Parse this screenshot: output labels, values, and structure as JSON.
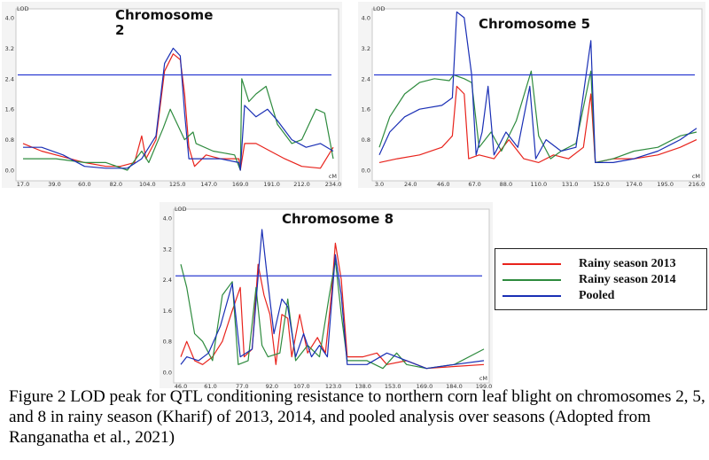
{
  "chart_data": [
    {
      "type": "line",
      "title": "Chromosome 2",
      "ylabel": "LOD",
      "xunit": "cM",
      "ylim": [
        0,
        4.0
      ],
      "xlim": [
        17,
        234
      ],
      "yticks": [
        "0.0",
        "0.8",
        "1.6",
        "2.4",
        "3.2",
        "4.0"
      ],
      "xticks": [
        "17.0",
        "39.0",
        "60.0",
        "82.0",
        "104.0",
        "125.0",
        "147.0",
        "169.0",
        "191.0",
        "212.0",
        "234.0"
      ],
      "threshold": 2.5,
      "series": [
        {
          "name": "Rainy season 2013",
          "color": "#e8231c",
          "points": [
            [
              17,
              0.7
            ],
            [
              30,
              0.5
            ],
            [
              45,
              0.35
            ],
            [
              60,
              0.2
            ],
            [
              75,
              0.1
            ],
            [
              85,
              0.1
            ],
            [
              95,
              0.2
            ],
            [
              100,
              0.9
            ],
            [
              103,
              0.3
            ],
            [
              110,
              0.8
            ],
            [
              116,
              2.6
            ],
            [
              122,
              3.05
            ],
            [
              127,
              2.9
            ],
            [
              130,
              2.0
            ],
            [
              133,
              0.6
            ],
            [
              137,
              0.1
            ],
            [
              145,
              0.4
            ],
            [
              155,
              0.3
            ],
            [
              168,
              0.3
            ],
            [
              169,
              0
            ],
            [
              172,
              0.7
            ],
            [
              180,
              0.7
            ],
            [
              190,
              0.5
            ],
            [
              200,
              0.3
            ],
            [
              212,
              0.1
            ],
            [
              225,
              0.05
            ],
            [
              234,
              0.6
            ]
          ]
        },
        {
          "name": "Rainy season 2014",
          "color": "#2e8b3e",
          "points": [
            [
              17,
              0.3
            ],
            [
              25,
              0.3
            ],
            [
              40,
              0.3
            ],
            [
              60,
              0.2
            ],
            [
              75,
              0.2
            ],
            [
              90,
              0.0
            ],
            [
              100,
              0.5
            ],
            [
              105,
              0.2
            ],
            [
              115,
              1.1
            ],
            [
              120,
              1.6
            ],
            [
              125,
              1.2
            ],
            [
              130,
              0.8
            ],
            [
              136,
              1.0
            ],
            [
              138,
              0.7
            ],
            [
              150,
              0.5
            ],
            [
              165,
              0.4
            ],
            [
              169,
              0
            ],
            [
              170,
              2.4
            ],
            [
              175,
              1.8
            ],
            [
              180,
              2.0
            ],
            [
              187,
              2.2
            ],
            [
              195,
              1.2
            ],
            [
              205,
              0.7
            ],
            [
              212,
              0.8
            ],
            [
              222,
              1.6
            ],
            [
              228,
              1.5
            ],
            [
              234,
              0.3
            ]
          ]
        },
        {
          "name": "Pooled",
          "color": "#1a2fb5",
          "points": [
            [
              17,
              0.6
            ],
            [
              30,
              0.6
            ],
            [
              45,
              0.4
            ],
            [
              60,
              0.1
            ],
            [
              75,
              0.05
            ],
            [
              90,
              0.05
            ],
            [
              100,
              0.3
            ],
            [
              110,
              0.9
            ],
            [
              116,
              2.8
            ],
            [
              122,
              3.2
            ],
            [
              127,
              3.0
            ],
            [
              130,
              1.5
            ],
            [
              133,
              0.3
            ],
            [
              140,
              0.3
            ],
            [
              155,
              0.3
            ],
            [
              168,
              0.2
            ],
            [
              169,
              0
            ],
            [
              172,
              1.7
            ],
            [
              180,
              1.4
            ],
            [
              188,
              1.6
            ],
            [
              195,
              1.3
            ],
            [
              205,
              0.8
            ],
            [
              215,
              0.6
            ],
            [
              225,
              0.7
            ],
            [
              234,
              0.5
            ]
          ]
        }
      ]
    },
    {
      "type": "line",
      "title": "Chromosome 5",
      "ylabel": "LOD",
      "xunit": "cM",
      "ylim": [
        0,
        4.0
      ],
      "xlim": [
        3,
        216
      ],
      "yticks": [
        "0.0",
        "0.8",
        "1.6",
        "2.4",
        "3.2",
        "4.0"
      ],
      "xticks": [
        "3.0",
        "24.0",
        "46.0",
        "67.0",
        "88.0",
        "110.0",
        "131.0",
        "152.0",
        "174.0",
        "195.0",
        "216.0"
      ],
      "threshold": 2.5,
      "series": [
        {
          "name": "Rainy season 2013",
          "color": "#e8231c",
          "points": [
            [
              3,
              0.2
            ],
            [
              15,
              0.3
            ],
            [
              30,
              0.4
            ],
            [
              45,
              0.6
            ],
            [
              52,
              0.9
            ],
            [
              55,
              2.2
            ],
            [
              60,
              2.0
            ],
            [
              63,
              0.3
            ],
            [
              70,
              0.4
            ],
            [
              80,
              0.3
            ],
            [
              90,
              0.8
            ],
            [
              100,
              0.3
            ],
            [
              110,
              0.2
            ],
            [
              120,
              0.4
            ],
            [
              130,
              0.3
            ],
            [
              140,
              0.6
            ],
            [
              145,
              2.0
            ],
            [
              148,
              0.2
            ],
            [
              160,
              0.3
            ],
            [
              174,
              0.3
            ],
            [
              190,
              0.4
            ],
            [
              205,
              0.6
            ],
            [
              216,
              0.8
            ]
          ]
        },
        {
          "name": "Rainy season 2014",
          "color": "#2e8b3e",
          "points": [
            [
              3,
              0.6
            ],
            [
              10,
              1.4
            ],
            [
              20,
              2.0
            ],
            [
              30,
              2.3
            ],
            [
              40,
              2.4
            ],
            [
              50,
              2.35
            ],
            [
              53,
              2.5
            ],
            [
              60,
              2.4
            ],
            [
              65,
              2.3
            ],
            [
              70,
              0.6
            ],
            [
              78,
              1.0
            ],
            [
              85,
              0.5
            ],
            [
              95,
              1.3
            ],
            [
              105,
              2.6
            ],
            [
              110,
              0.9
            ],
            [
              118,
              0.3
            ],
            [
              125,
              0.5
            ],
            [
              135,
              0.7
            ],
            [
              145,
              2.6
            ],
            [
              148,
              0.2
            ],
            [
              160,
              0.3
            ],
            [
              174,
              0.5
            ],
            [
              190,
              0.6
            ],
            [
              205,
              0.9
            ],
            [
              216,
              1.0
            ]
          ]
        },
        {
          "name": "Pooled",
          "color": "#1a2fb5",
          "points": [
            [
              3,
              0.4
            ],
            [
              10,
              1.0
            ],
            [
              20,
              1.4
            ],
            [
              30,
              1.6
            ],
            [
              45,
              1.7
            ],
            [
              52,
              1.9
            ],
            [
              55,
              4.15
            ],
            [
              60,
              4.0
            ],
            [
              65,
              2.5
            ],
            [
              68,
              0.4
            ],
            [
              72,
              1.0
            ],
            [
              76,
              2.2
            ],
            [
              80,
              0.4
            ],
            [
              88,
              1.0
            ],
            [
              96,
              0.6
            ],
            [
              104,
              2.2
            ],
            [
              108,
              0.3
            ],
            [
              115,
              0.8
            ],
            [
              125,
              0.5
            ],
            [
              135,
              0.6
            ],
            [
              145,
              3.4
            ],
            [
              148,
              0.2
            ],
            [
              160,
              0.2
            ],
            [
              174,
              0.3
            ],
            [
              190,
              0.5
            ],
            [
              205,
              0.8
            ],
            [
              216,
              1.1
            ]
          ]
        }
      ]
    },
    {
      "type": "line",
      "title": "Chromosome 8",
      "ylabel": "LOD",
      "xunit": "cM",
      "ylim": [
        0,
        4.0
      ],
      "xlim": [
        46,
        199
      ],
      "yticks": [
        "0.0",
        "0.8",
        "1.6",
        "2.4",
        "3.2",
        "4.0"
      ],
      "xticks": [
        "46.0",
        "61.0",
        "77.0",
        "92.0",
        "107.0",
        "123.0",
        "138.0",
        "153.0",
        "169.0",
        "184.0",
        "199.0"
      ],
      "threshold": 2.5,
      "series": [
        {
          "name": "Rainy season 2013",
          "color": "#e8231c",
          "points": [
            [
              46,
              0.4
            ],
            [
              49,
              0.8
            ],
            [
              53,
              0.3
            ],
            [
              57,
              0.2
            ],
            [
              62,
              0.4
            ],
            [
              67,
              0.8
            ],
            [
              72,
              1.6
            ],
            [
              76,
              2.2
            ],
            [
              78,
              0.4
            ],
            [
              82,
              0.6
            ],
            [
              85,
              2.8
            ],
            [
              88,
              2.0
            ],
            [
              91,
              1.5
            ],
            [
              94,
              0.2
            ],
            [
              97,
              1.5
            ],
            [
              100,
              1.4
            ],
            [
              102,
              0.4
            ],
            [
              106,
              1.5
            ],
            [
              110,
              0.5
            ],
            [
              115,
              0.9
            ],
            [
              119,
              0.5
            ],
            [
              122,
              2.0
            ],
            [
              124,
              3.35
            ],
            [
              127,
              2.4
            ],
            [
              130,
              0.4
            ],
            [
              138,
              0.4
            ],
            [
              145,
              0.5
            ],
            [
              150,
              0.2
            ],
            [
              160,
              0.3
            ],
            [
              170,
              0.1
            ],
            [
              184,
              0.15
            ],
            [
              199,
              0.2
            ]
          ]
        },
        {
          "name": "Rainy season 2014",
          "color": "#2e8b3e",
          "points": [
            [
              46,
              2.8
            ],
            [
              49,
              2.2
            ],
            [
              53,
              1.0
            ],
            [
              57,
              0.8
            ],
            [
              62,
              0.3
            ],
            [
              67,
              2.0
            ],
            [
              72,
              2.35
            ],
            [
              75,
              0.2
            ],
            [
              80,
              0.3
            ],
            [
              84,
              2.2
            ],
            [
              87,
              0.7
            ],
            [
              90,
              0.4
            ],
            [
              96,
              0.5
            ],
            [
              100,
              1.9
            ],
            [
              104,
              0.3
            ],
            [
              110,
              0.7
            ],
            [
              116,
              0.4
            ],
            [
              121,
              2.0
            ],
            [
              124,
              2.9
            ],
            [
              127,
              1.5
            ],
            [
              130,
              0.3
            ],
            [
              140,
              0.3
            ],
            [
              148,
              0.1
            ],
            [
              155,
              0.5
            ],
            [
              160,
              0.2
            ],
            [
              170,
              0.1
            ],
            [
              184,
              0.2
            ],
            [
              199,
              0.6
            ]
          ]
        },
        {
          "name": "Pooled",
          "color": "#1a2fb5",
          "points": [
            [
              46,
              0.2
            ],
            [
              49,
              0.4
            ],
            [
              55,
              0.3
            ],
            [
              60,
              0.5
            ],
            [
              66,
              1.2
            ],
            [
              72,
              2.3
            ],
            [
              76,
              0.4
            ],
            [
              82,
              0.6
            ],
            [
              87,
              3.7
            ],
            [
              90,
              2.3
            ],
            [
              93,
              1.0
            ],
            [
              97,
              1.9
            ],
            [
              100,
              1.7
            ],
            [
              104,
              0.4
            ],
            [
              108,
              1.0
            ],
            [
              112,
              0.4
            ],
            [
              116,
              0.7
            ],
            [
              120,
              0.4
            ],
            [
              124,
              3.05
            ],
            [
              127,
              2.0
            ],
            [
              130,
              0.2
            ],
            [
              140,
              0.2
            ],
            [
              150,
              0.5
            ],
            [
              160,
              0.3
            ],
            [
              170,
              0.1
            ],
            [
              184,
              0.2
            ],
            [
              199,
              0.3
            ]
          ]
        }
      ]
    }
  ],
  "legend": {
    "items": [
      {
        "label": "Rainy season 2013",
        "color": "#e8231c"
      },
      {
        "label": "Rainy season 2014",
        "color": "#2e8b3e"
      },
      {
        "label": "Pooled",
        "color": "#1a2fb5"
      }
    ]
  },
  "caption": "Figure 2 LOD peak for QTL conditioning resistance to northern corn leaf blight on chromosomes 2, 5, and 8 in rainy season (Kharif) of 2013, 2014, and pooled analysis over seasons (Adopted from Ranganatha et al., 2021)"
}
